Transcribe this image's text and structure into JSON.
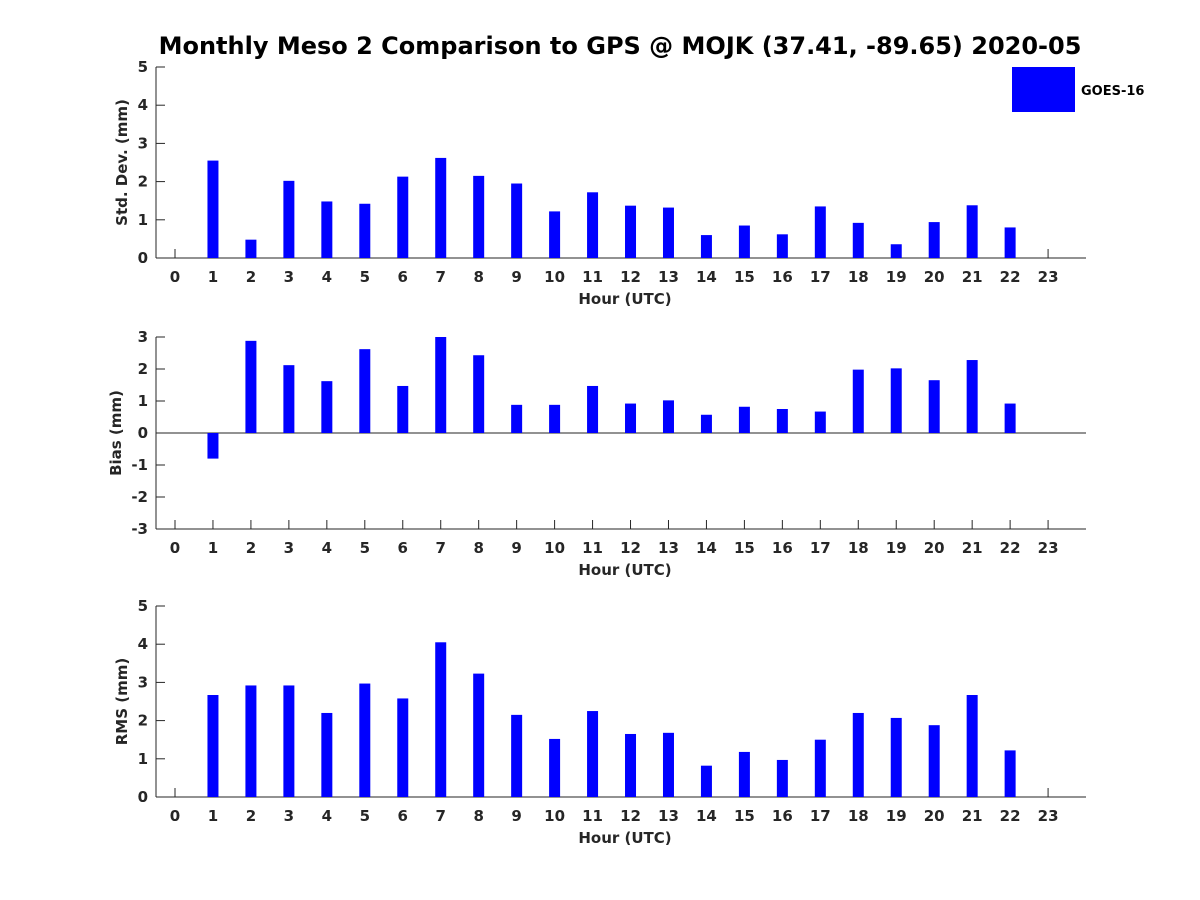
{
  "title": "Monthly Meso 2 Comparison to GPS @ MOJK (37.41, -89.65) 2020-05",
  "legend": {
    "label": "GOES-16",
    "color": "#0000ff",
    "placement": "top-right"
  },
  "chart_data": [
    {
      "type": "bar",
      "xlabel": "Hour (UTC)",
      "ylabel": "Std. Dev. (mm)",
      "ylim": [
        0,
        5
      ],
      "yticks": [
        0,
        1,
        2,
        3,
        4,
        5
      ],
      "categories": [
        0,
        1,
        2,
        3,
        4,
        5,
        6,
        7,
        8,
        9,
        10,
        11,
        12,
        13,
        14,
        15,
        16,
        17,
        18,
        19,
        20,
        21,
        22,
        23
      ],
      "series": [
        {
          "values": [
            null,
            2.55,
            0.48,
            2.02,
            1.48,
            1.42,
            2.13,
            2.62,
            2.15,
            1.95,
            1.22,
            1.72,
            1.37,
            1.32,
            0.6,
            0.85,
            0.62,
            1.35,
            0.92,
            0.36,
            0.94,
            1.38,
            0.8,
            null
          ]
        }
      ]
    },
    {
      "type": "bar",
      "xlabel": "Hour (UTC)",
      "ylabel": "Bias (mm)",
      "ylim": [
        -3,
        3
      ],
      "yticks": [
        -3,
        -2,
        -1,
        0,
        1,
        2,
        3
      ],
      "categories": [
        0,
        1,
        2,
        3,
        4,
        5,
        6,
        7,
        8,
        9,
        10,
        11,
        12,
        13,
        14,
        15,
        16,
        17,
        18,
        19,
        20,
        21,
        22,
        23
      ],
      "series": [
        {
          "values": [
            null,
            -0.8,
            2.88,
            2.12,
            1.62,
            2.62,
            1.47,
            3.0,
            2.43,
            0.88,
            0.88,
            1.47,
            0.92,
            1.02,
            0.57,
            0.82,
            0.75,
            0.67,
            1.98,
            2.02,
            1.65,
            2.28,
            0.92,
            null
          ]
        }
      ]
    },
    {
      "type": "bar",
      "xlabel": "Hour (UTC)",
      "ylabel": "RMS (mm)",
      "ylim": [
        0,
        5
      ],
      "yticks": [
        0,
        1,
        2,
        3,
        4,
        5
      ],
      "categories": [
        0,
        1,
        2,
        3,
        4,
        5,
        6,
        7,
        8,
        9,
        10,
        11,
        12,
        13,
        14,
        15,
        16,
        17,
        18,
        19,
        20,
        21,
        22,
        23
      ],
      "series": [
        {
          "values": [
            null,
            2.67,
            2.92,
            2.92,
            2.2,
            2.97,
            2.58,
            4.05,
            3.23,
            2.15,
            1.52,
            2.25,
            1.65,
            1.68,
            0.82,
            1.18,
            0.97,
            1.5,
            2.2,
            2.07,
            1.88,
            2.67,
            1.22,
            null
          ]
        }
      ]
    }
  ]
}
